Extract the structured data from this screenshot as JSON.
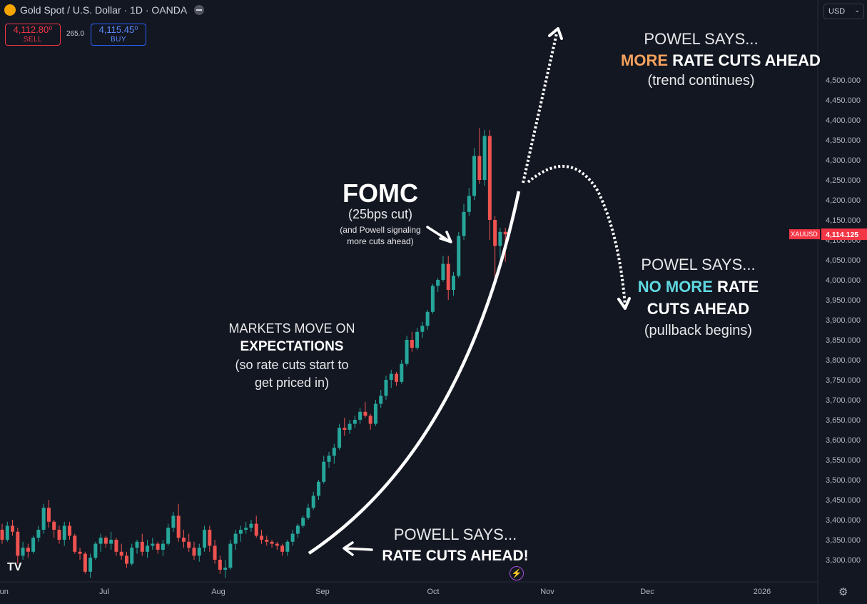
{
  "header": {
    "symbol_title": "Gold Spot / U.S. Dollar · 1D · OANDA",
    "sell_price": "4,112.80⁰",
    "sell_label": "SELL",
    "spread": "265.0",
    "buy_price": "4,115.45⁰",
    "buy_label": "BUY",
    "currency": "USD",
    "symbol_icon": "gold-coin-icon"
  },
  "chart_data": {
    "type": "candlestick",
    "symbol": "XAUUSD",
    "last_price": 4114.125,
    "last_price_label": "4,114.125",
    "ylim": [
      3250,
      4525
    ],
    "y_ticks": [
      3300,
      3350,
      3400,
      3450,
      3500,
      3550,
      3600,
      3650,
      3700,
      3750,
      3800,
      3850,
      3900,
      3950,
      4000,
      4050,
      4100,
      4150,
      4200,
      4250,
      4300,
      4350,
      4400,
      4450,
      4500
    ],
    "y_tick_labels": [
      "3,300.000",
      "3,350.000",
      "3,400.000",
      "3,450.000",
      "3,500.000",
      "3,550.000",
      "3,600.000",
      "3,650.000",
      "3,700.000",
      "3,750.000",
      "3,800.000",
      "3,850.000",
      "3,900.000",
      "3,950.000",
      "4,000.000",
      "4,050.000",
      "4,100.000",
      "4,150.000",
      "4,200.000",
      "4,250.000",
      "4,300.000",
      "4,350.000",
      "4,400.000",
      "4,450.000",
      "4,500.000"
    ],
    "x_labels": [
      "Jun",
      "Jul",
      "Aug",
      "Sep",
      "Oct",
      "Nov",
      "Dec",
      "2026"
    ],
    "candles": [
      [
        3375,
        3390,
        3340,
        3350
      ],
      [
        3350,
        3395,
        3345,
        3385
      ],
      [
        3385,
        3400,
        3360,
        3370
      ],
      [
        3370,
        3380,
        3290,
        3310
      ],
      [
        3310,
        3345,
        3300,
        3330
      ],
      [
        3330,
        3340,
        3305,
        3320
      ],
      [
        3320,
        3360,
        3315,
        3355
      ],
      [
        3355,
        3385,
        3345,
        3375
      ],
      [
        3375,
        3440,
        3365,
        3430
      ],
      [
        3430,
        3450,
        3380,
        3395
      ],
      [
        3395,
        3400,
        3355,
        3375
      ],
      [
        3375,
        3385,
        3340,
        3350
      ],
      [
        3350,
        3395,
        3335,
        3385
      ],
      [
        3385,
        3395,
        3350,
        3360
      ],
      [
        3360,
        3365,
        3315,
        3320
      ],
      [
        3320,
        3330,
        3300,
        3315
      ],
      [
        3315,
        3320,
        3265,
        3270
      ],
      [
        3270,
        3315,
        3255,
        3305
      ],
      [
        3305,
        3345,
        3300,
        3340
      ],
      [
        3340,
        3365,
        3320,
        3355
      ],
      [
        3355,
        3360,
        3330,
        3340
      ],
      [
        3340,
        3370,
        3325,
        3350
      ],
      [
        3350,
        3355,
        3310,
        3320
      ],
      [
        3320,
        3340,
        3300,
        3310
      ],
      [
        3310,
        3320,
        3280,
        3290
      ],
      [
        3290,
        3340,
        3285,
        3330
      ],
      [
        3330,
        3350,
        3315,
        3345
      ],
      [
        3345,
        3365,
        3310,
        3320
      ],
      [
        3320,
        3350,
        3305,
        3335
      ],
      [
        3335,
        3355,
        3325,
        3340
      ],
      [
        3340,
        3345,
        3315,
        3325
      ],
      [
        3325,
        3350,
        3310,
        3340
      ],
      [
        3340,
        3390,
        3335,
        3380
      ],
      [
        3380,
        3420,
        3370,
        3410
      ],
      [
        3410,
        3440,
        3345,
        3355
      ],
      [
        3355,
        3375,
        3330,
        3345
      ],
      [
        3345,
        3365,
        3320,
        3330
      ],
      [
        3330,
        3345,
        3300,
        3310
      ],
      [
        3310,
        3340,
        3295,
        3330
      ],
      [
        3330,
        3385,
        3320,
        3375
      ],
      [
        3375,
        3385,
        3320,
        3335
      ],
      [
        3335,
        3350,
        3290,
        3300
      ],
      [
        3300,
        3310,
        3265,
        3275
      ],
      [
        3275,
        3300,
        3255,
        3280
      ],
      [
        3280,
        3350,
        3275,
        3340
      ],
      [
        3340,
        3375,
        3325,
        3365
      ],
      [
        3365,
        3385,
        3345,
        3375
      ],
      [
        3375,
        3395,
        3365,
        3380
      ],
      [
        3380,
        3400,
        3370,
        3390
      ],
      [
        3390,
        3410,
        3355,
        3360
      ],
      [
        3360,
        3375,
        3340,
        3350
      ],
      [
        3350,
        3360,
        3335,
        3345
      ],
      [
        3345,
        3350,
        3330,
        3340
      ],
      [
        3340,
        3345,
        3325,
        3335
      ],
      [
        3335,
        3340,
        3310,
        3320
      ],
      [
        3320,
        3350,
        3310,
        3345
      ],
      [
        3345,
        3375,
        3335,
        3365
      ],
      [
        3365,
        3390,
        3355,
        3385
      ],
      [
        3385,
        3410,
        3380,
        3405
      ],
      [
        3405,
        3440,
        3400,
        3430
      ],
      [
        3430,
        3470,
        3425,
        3460
      ],
      [
        3460,
        3500,
        3450,
        3495
      ],
      [
        3495,
        3560,
        3490,
        3545
      ],
      [
        3545,
        3570,
        3530,
        3560
      ],
      [
        3560,
        3590,
        3540,
        3580
      ],
      [
        3580,
        3640,
        3575,
        3630
      ],
      [
        3630,
        3655,
        3610,
        3625
      ],
      [
        3625,
        3650,
        3615,
        3640
      ],
      [
        3640,
        3660,
        3630,
        3650
      ],
      [
        3650,
        3680,
        3640,
        3670
      ],
      [
        3670,
        3695,
        3655,
        3660
      ],
      [
        3660,
        3665,
        3625,
        3640
      ],
      [
        3640,
        3700,
        3635,
        3690
      ],
      [
        3690,
        3725,
        3680,
        3710
      ],
      [
        3710,
        3760,
        3700,
        3750
      ],
      [
        3750,
        3775,
        3730,
        3765
      ],
      [
        3765,
        3770,
        3735,
        3745
      ],
      [
        3745,
        3800,
        3740,
        3790
      ],
      [
        3790,
        3860,
        3785,
        3850
      ],
      [
        3850,
        3870,
        3820,
        3830
      ],
      [
        3830,
        3880,
        3825,
        3870
      ],
      [
        3870,
        3895,
        3855,
        3885
      ],
      [
        3885,
        3925,
        3875,
        3920
      ],
      [
        3920,
        3990,
        3915,
        3985
      ],
      [
        3985,
        4005,
        3970,
        4000
      ],
      [
        4000,
        4060,
        3995,
        4040
      ],
      [
        4040,
        4060,
        3950,
        3975
      ],
      [
        3975,
        4020,
        3960,
        4010
      ],
      [
        4010,
        4120,
        4005,
        4110
      ],
      [
        4110,
        4190,
        4100,
        4170
      ],
      [
        4170,
        4230,
        4160,
        4210
      ],
      [
        4210,
        4330,
        4200,
        4310
      ],
      [
        4310,
        4380,
        4240,
        4250
      ],
      [
        4250,
        4375,
        4235,
        4360
      ],
      [
        4360,
        4375,
        4100,
        4150
      ],
      [
        4150,
        4160,
        4005,
        4085
      ],
      [
        4085,
        4130,
        4055,
        4120
      ],
      [
        4120,
        4130,
        4045,
        4114
      ]
    ],
    "up_color": "#26a69a",
    "down_color": "#ef5350"
  },
  "annotations": {
    "powell_up_1": "POWEL SAYS...",
    "powell_up_2a": "MORE",
    "powell_up_2b": " RATE CUTS AHEAD",
    "powell_up_3": "(trend continues)",
    "fomc_title": "FOMC",
    "fomc_sub": "(25bps cut)",
    "fomc_note_1": "(and Powell signaling",
    "fomc_note_2": "more cuts ahead)",
    "powell_down_1": "POWEL SAYS...",
    "powell_down_2a": "NO MORE",
    "powell_down_2b": " RATE",
    "powell_down_3": "CUTS AHEAD",
    "powell_down_4": "(pullback begins)",
    "markets_1": "MARKETS MOVE ON",
    "markets_2": "EXPECTATIONS",
    "markets_3": "(so rate cuts start to",
    "markets_4": "get priced in)",
    "powell_start_1": "POWELL SAYS...",
    "powell_start_2": "RATE CUTS AHEAD!"
  },
  "icons": {
    "logo": "tradingview-logo-icon",
    "bolt": "lightning-icon",
    "settings": "gear-icon"
  },
  "colors": {
    "accent_orange": "#f5a15c",
    "accent_cyan": "#5fd7e0",
    "price_tag": "#f23645",
    "background": "#131722"
  }
}
